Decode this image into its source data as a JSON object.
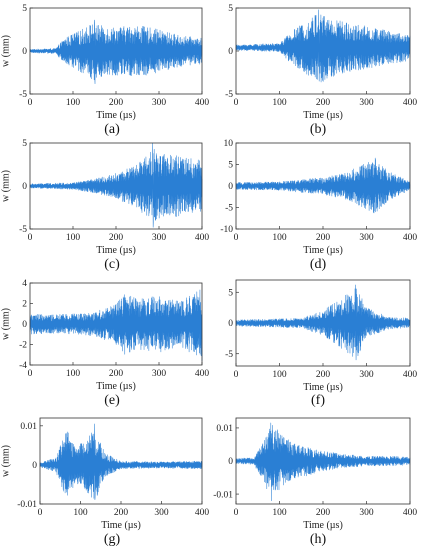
{
  "figure": {
    "panels": [
      {
        "caption": "(a)"
      },
      {
        "caption": "(b)"
      },
      {
        "caption": "(c)"
      },
      {
        "caption": "(d)"
      },
      {
        "caption": "(e)"
      },
      {
        "caption": "(f)"
      },
      {
        "caption": "(g)"
      },
      {
        "caption": "(h)"
      }
    ]
  },
  "chart_data": [
    {
      "type": "line",
      "xlabel": "Time (µs)",
      "ylabel": "w (mm)",
      "xlim": [
        0,
        400
      ],
      "ylim": [
        -5,
        5
      ],
      "xticks": [
        0,
        100,
        200,
        300,
        400
      ],
      "yticks": [
        -5,
        0,
        5
      ],
      "ytick_labels": [
        "-5",
        "0",
        "5"
      ],
      "series": [
        {
          "color": "#2a7fd4",
          "envelope": {
            "t": [
              0,
              60,
              80,
              120,
              150,
              160,
              200,
              250,
              300,
              350,
              400
            ],
            "amp": [
              0.2,
              0.3,
              1.5,
              2.5,
              3.5,
              3.0,
              2.8,
              3.0,
              2.5,
              1.8,
              1.5
            ]
          },
          "offset": 0,
          "peak_max": 3.6,
          "peak_min": -3.8
        }
      ]
    },
    {
      "type": "line",
      "xlabel": "Time (µs)",
      "ylabel": "",
      "xlim": [
        0,
        400
      ],
      "ylim": [
        -5,
        5
      ],
      "xticks": [
        0,
        100,
        200,
        300,
        400
      ],
      "yticks": [
        -5,
        0,
        5
      ],
      "ytick_labels": [
        "-5",
        "0",
        "5"
      ],
      "series": [
        {
          "color": "#2a7fd4",
          "envelope": {
            "t": [
              0,
              100,
              130,
              160,
              190,
              220,
              250,
              300,
              350,
              400
            ],
            "amp": [
              0.3,
              0.5,
              2.0,
              3.0,
              4.2,
              3.5,
              3.0,
              2.5,
              2.0,
              1.5
            ]
          },
          "offset": 0.4,
          "peak_max": 4.8,
          "peak_min": -3.5
        }
      ]
    },
    {
      "type": "line",
      "xlabel": "Time (µs)",
      "ylabel": "w (mm)",
      "xlim": [
        0,
        400
      ],
      "ylim": [
        -5,
        5
      ],
      "xticks": [
        0,
        100,
        200,
        300,
        400
      ],
      "yticks": [
        -5,
        0,
        5
      ],
      "ytick_labels": [
        "-5",
        "0",
        "5"
      ],
      "series": [
        {
          "color": "#2a7fd4",
          "envelope": {
            "t": [
              0,
              100,
              150,
              200,
              250,
              285,
              300,
              350,
              400
            ],
            "amp": [
              0.25,
              0.4,
              0.8,
              1.5,
              2.5,
              4.5,
              3.8,
              3.5,
              3.0
            ]
          },
          "offset": 0,
          "peak_max": 5.5,
          "peak_min": -4.8
        }
      ]
    },
    {
      "type": "line",
      "xlabel": "Time (µs)",
      "ylabel": "",
      "xlim": [
        0,
        400
      ],
      "ylim": [
        -10,
        10
      ],
      "xticks": [
        0,
        100,
        200,
        300,
        400
      ],
      "yticks": [
        -10,
        -5,
        0,
        5,
        10
      ],
      "ytick_labels": [
        "-10",
        "-5",
        "0",
        "5",
        "10"
      ],
      "series": [
        {
          "color": "#2a7fd4",
          "envelope": {
            "t": [
              0,
              100,
              150,
              200,
              250,
              300,
              320,
              350,
              400
            ],
            "amp": [
              0.8,
              1.0,
              1.5,
              2.0,
              3.0,
              5.5,
              6.5,
              3.5,
              1.0
            ]
          },
          "offset": 0,
          "peak_max": 6.5,
          "peak_min": -6.0
        }
      ]
    },
    {
      "type": "line",
      "xlabel": "Time (µs)",
      "ylabel": "w (mm)",
      "xlim": [
        0,
        400
      ],
      "ylim": [
        -4,
        4
      ],
      "xticks": [
        0,
        100,
        200,
        300,
        400
      ],
      "yticks": [
        -4,
        -2,
        0,
        2,
        4
      ],
      "ytick_labels": [
        "-4",
        "-2",
        "0",
        "2",
        "4"
      ],
      "series": [
        {
          "color": "#2a7fd4",
          "envelope": {
            "t": [
              0,
              50,
              100,
              150,
              200,
              220,
              250,
              300,
              350,
              380,
              400
            ],
            "amp": [
              1.0,
              0.9,
              1.0,
              1.2,
              2.0,
              3.0,
              2.5,
              2.8,
              2.2,
              3.0,
              3.5
            ]
          },
          "offset": 0,
          "peak_max": 3.6,
          "peak_min": -3.6
        }
      ]
    },
    {
      "type": "line",
      "xlabel": "Time (µs)",
      "ylabel": "",
      "xlim": [
        0,
        400
      ],
      "ylim": [
        -7,
        7
      ],
      "xticks": [
        0,
        100,
        200,
        300,
        400
      ],
      "yticks": [
        -5,
        0,
        5
      ],
      "ytick_labels": [
        "-5",
        "0",
        "5"
      ],
      "series": [
        {
          "color": "#2a7fd4",
          "envelope": {
            "t": [
              0,
              150,
              200,
              230,
              260,
              275,
              300,
              350,
              400
            ],
            "amp": [
              0.5,
              0.8,
              2.0,
              3.5,
              5.0,
              6.2,
              2.5,
              1.0,
              0.8
            ]
          },
          "offset": 0,
          "peak_max": 6.2,
          "peak_min": -6.0
        }
      ]
    },
    {
      "type": "line",
      "xlabel": "Time (µs)",
      "ylabel": "w (mm)",
      "xlim": [
        0,
        400
      ],
      "ylim": [
        -0.01,
        0.012
      ],
      "xticks": [
        0,
        100,
        200,
        300,
        400
      ],
      "yticks": [
        -0.01,
        0,
        0.01
      ],
      "ytick_labels": [
        "-0.01",
        "0",
        "0.01"
      ],
      "series": [
        {
          "color": "#2a7fd4",
          "envelope": {
            "t": [
              0,
              40,
              65,
              90,
              110,
              135,
              160,
              200,
              300,
              400
            ],
            "amp": [
              0.0005,
              0.002,
              0.009,
              0.005,
              0.006,
              0.0095,
              0.003,
              0.001,
              0.0008,
              0.001
            ]
          },
          "offset": 0,
          "peak_max": 0.0105,
          "peak_min": -0.0085
        }
      ]
    },
    {
      "type": "line",
      "xlabel": "Time (µs)",
      "ylabel": "",
      "xlim": [
        0,
        400
      ],
      "ylim": [
        -0.013,
        0.013
      ],
      "xticks": [
        0,
        100,
        200,
        300,
        400
      ],
      "yticks": [
        -0.01,
        0,
        0.01
      ],
      "ytick_labels": [
        "-0.01",
        "0",
        "0.01"
      ],
      "series": [
        {
          "color": "#2a7fd4",
          "envelope": {
            "t": [
              0,
              40,
              60,
              80,
              100,
              130,
              150,
              200,
              250,
              300,
              350,
              400
            ],
            "amp": [
              0.0008,
              0.001,
              0.005,
              0.0115,
              0.009,
              0.006,
              0.005,
              0.003,
              0.002,
              0.0015,
              0.0015,
              0.0012
            ]
          },
          "offset": 0,
          "peak_max": 0.0115,
          "peak_min": -0.012
        }
      ]
    }
  ]
}
